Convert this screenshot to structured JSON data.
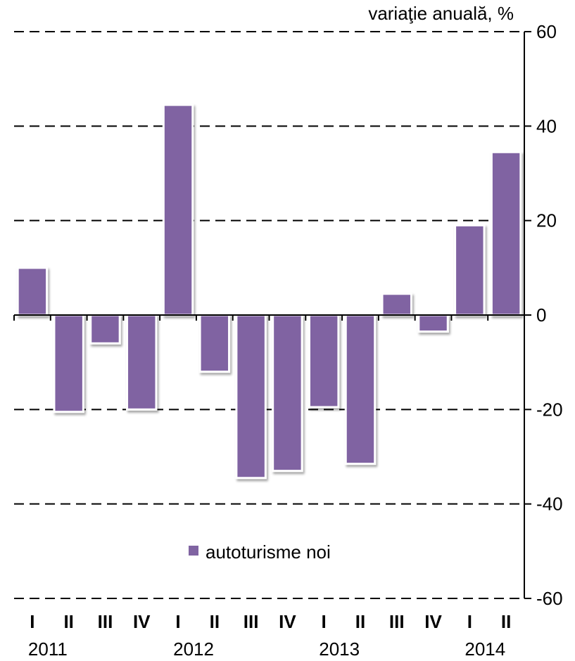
{
  "chart_data": {
    "type": "bar",
    "title": "",
    "unit_label": "variaţie anuală, %",
    "ylim": [
      -60,
      60
    ],
    "yticks": [
      60,
      40,
      20,
      0,
      -20,
      -40,
      -60
    ],
    "grid": true,
    "legend_position": "lower-left",
    "categories": [
      "I",
      "II",
      "III",
      "IV",
      "I",
      "II",
      "III",
      "IV",
      "I",
      "II",
      "III",
      "IV",
      "I",
      "II"
    ],
    "years": [
      {
        "label": "2011",
        "start_index": 0
      },
      {
        "label": "2012",
        "start_index": 4
      },
      {
        "label": "2013",
        "start_index": 8
      },
      {
        "label": "2014",
        "start_index": 12
      }
    ],
    "series": [
      {
        "name": "autoturisme noi",
        "color": "#8064A2",
        "values": [
          10,
          -20.5,
          -6,
          -20,
          44.5,
          -12,
          -34.5,
          -33,
          -19.5,
          -31.5,
          4.5,
          -3.5,
          19,
          34.5
        ]
      }
    ]
  }
}
